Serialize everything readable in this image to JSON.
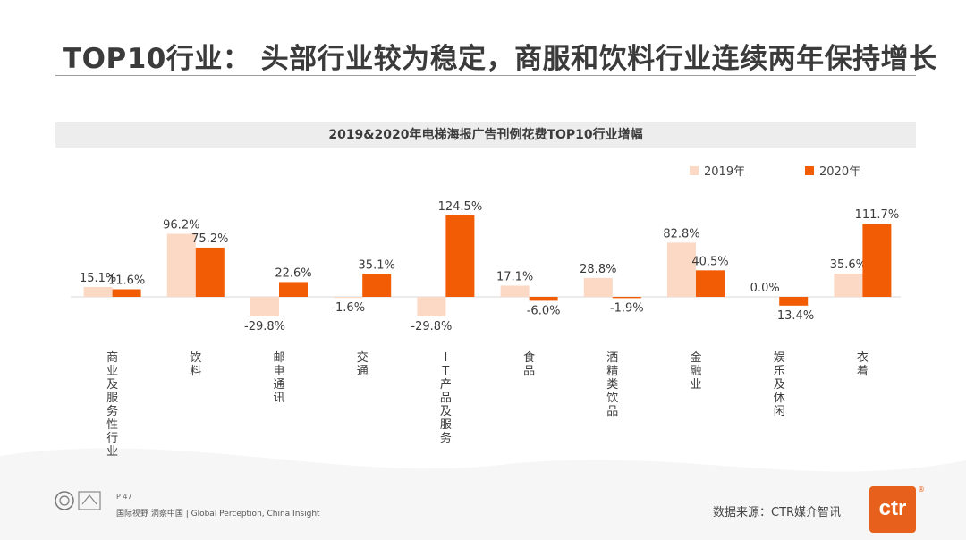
{
  "header": {
    "title": "TOP10行业： 头部行业较为稳定，商服和饮料行业连续两年保持增长"
  },
  "chart_data": {
    "type": "bar",
    "title": "2019&2020年电梯海报广告刊例花费TOP10行业增幅",
    "categories": [
      "商业及服务性行业",
      "饮料",
      "邮电通讯",
      "交通",
      "IT产品及服务",
      "食品",
      "酒精类饮品",
      "金融业",
      "娱乐及休闲",
      "衣着"
    ],
    "series": [
      {
        "name": "2019年",
        "color": "#fbd9c5",
        "values": [
          15.1,
          96.2,
          -29.8,
          -1.6,
          -29.8,
          17.1,
          28.8,
          82.8,
          0.0,
          35.6
        ]
      },
      {
        "name": "2020年",
        "color": "#f25c05",
        "values": [
          11.6,
          75.2,
          22.6,
          35.1,
          124.5,
          -6.0,
          -1.9,
          40.5,
          -13.4,
          111.7
        ]
      }
    ],
    "data_labels": [
      [
        "15.1%",
        "96.2%",
        "-29.8%",
        "-1.6%",
        "-29.8%",
        "17.1%",
        "28.8%",
        "82.8%",
        "0.0%",
        "35.6%"
      ],
      [
        "11.6%",
        "75.2%",
        "22.6%",
        "35.1%",
        "124.5%",
        "-6.0%",
        "-1.9%",
        "40.5%",
        "-13.4%",
        "111.7%"
      ]
    ],
    "ylim": [
      -40,
      130
    ],
    "grid": false,
    "legend": "top-right",
    "xlabel": "",
    "ylabel": ""
  },
  "footer": {
    "page": "P 47",
    "tagline": "国际视野 洞察中国 | Global Perception, China Insight",
    "source": "数据来源：CTR媒介智讯",
    "brand": "ctr",
    "registered": "®"
  }
}
